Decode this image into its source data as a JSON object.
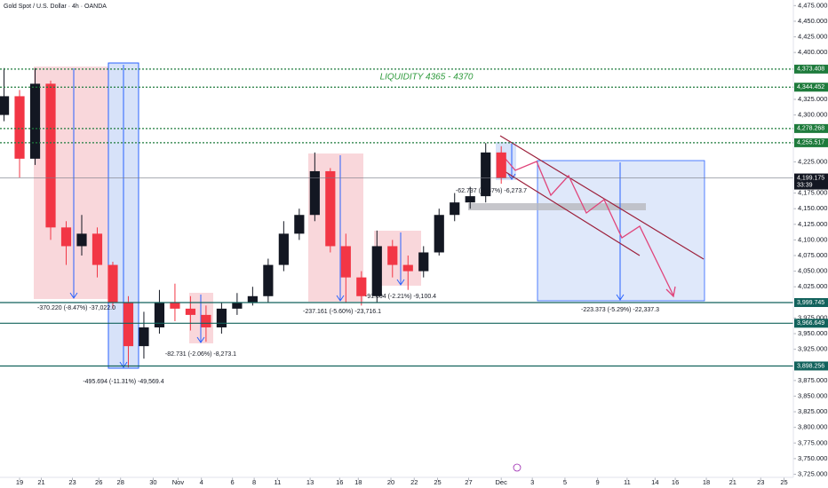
{
  "chart_data": {
    "type": "candlestick",
    "title": "Gold Spot / U.S. Dollar · 4h · OANDA",
    "x": [
      -1,
      0,
      1,
      2,
      3,
      4,
      5,
      6,
      7,
      8,
      9,
      10,
      11,
      12,
      13,
      14,
      15,
      16,
      17,
      18,
      19,
      20,
      21,
      22,
      23,
      24,
      25,
      26,
      27,
      28,
      29,
      30,
      31
    ],
    "open": [
      4300,
      4330,
      4230,
      4350,
      4120,
      4090,
      4110,
      4060,
      4000,
      3930,
      3960,
      4000,
      3990,
      3980,
      3960,
      3990,
      4000,
      4010,
      4060,
      4110,
      4140,
      4210,
      4090,
      4040,
      4010,
      4090,
      4060,
      4050,
      4080,
      4140,
      4160,
      4170,
      4240
    ],
    "high": [
      4375,
      4340,
      4375,
      4355,
      4130,
      4140,
      4120,
      4065,
      4010,
      3985,
      4020,
      4030,
      4010,
      3995,
      4000,
      4015,
      4025,
      4070,
      4130,
      4150,
      4240,
      4215,
      4110,
      4050,
      4115,
      4100,
      4075,
      4090,
      4150,
      4175,
      4185,
      4255,
      4250
    ],
    "low": [
      4290,
      4200,
      4220,
      4100,
      4060,
      4075,
      4040,
      3990,
      3896,
      3910,
      3950,
      3970,
      3955,
      3937,
      3950,
      3980,
      3995,
      4000,
      4050,
      4100,
      4130,
      4080,
      4000,
      3995,
      4000,
      4040,
      4020,
      4040,
      4075,
      4130,
      4150,
      4160,
      4190
    ],
    "close": [
      4330,
      4230,
      4350,
      4120,
      4090,
      4110,
      4060,
      4000,
      3930,
      3960,
      4000,
      3990,
      3980,
      3960,
      3990,
      4000,
      4010,
      4060,
      4110,
      4140,
      4210,
      4090,
      4040,
      4010,
      4090,
      4060,
      4050,
      4080,
      4140,
      4160,
      4170,
      4240,
      4199
    ],
    "up_color": "#131722",
    "down_color": "#f23645",
    "xlim": [
      -1.26,
      49.8
    ],
    "xticks": [
      {
        "value": 0,
        "label": "19"
      },
      {
        "value": 1.4,
        "label": "21"
      },
      {
        "value": 3.4,
        "label": "23"
      },
      {
        "value": 5.1,
        "label": "26"
      },
      {
        "value": 6.5,
        "label": "28"
      },
      {
        "value": 8.6,
        "label": "30"
      },
      {
        "value": 10.2,
        "label": "Nov"
      },
      {
        "value": 11.7,
        "label": "4"
      },
      {
        "value": 13.7,
        "label": "6"
      },
      {
        "value": 15.1,
        "label": "8"
      },
      {
        "value": 16.6,
        "label": "11"
      },
      {
        "value": 18.7,
        "label": "13"
      },
      {
        "value": 20.6,
        "label": "16"
      },
      {
        "value": 21.8,
        "label": "18"
      },
      {
        "value": 23.9,
        "label": "20"
      },
      {
        "value": 25.4,
        "label": "22"
      },
      {
        "value": 26.9,
        "label": "25"
      },
      {
        "value": 28.9,
        "label": "27"
      },
      {
        "value": 31,
        "label": "Dec"
      },
      {
        "value": 33,
        "label": "3"
      },
      {
        "value": 35.1,
        "label": "5"
      },
      {
        "value": 37.2,
        "label": "9"
      },
      {
        "value": 39.1,
        "label": "11"
      },
      {
        "value": 40.9,
        "label": "14"
      },
      {
        "value": 42.2,
        "label": "16"
      },
      {
        "value": 44.2,
        "label": "18"
      },
      {
        "value": 45.9,
        "label": "21"
      },
      {
        "value": 47.7,
        "label": "23"
      },
      {
        "value": 49.2,
        "label": "25"
      }
    ],
    "ylim": [
      3720,
      4484
    ],
    "yticks": [
      {
        "value": 4475,
        "label": "4,475.000"
      },
      {
        "value": 4450,
        "label": "4,450.000"
      },
      {
        "value": 4425,
        "label": "4,425.000"
      },
      {
        "value": 4400,
        "label": "4,400.000"
      },
      {
        "value": 4325,
        "label": "4,325.000"
      },
      {
        "value": 4300,
        "label": "4,300.000"
      },
      {
        "value": 4225,
        "label": "4,225.000"
      },
      {
        "value": 4175,
        "label": "4,175.000"
      },
      {
        "value": 4150,
        "label": "4,150.000"
      },
      {
        "value": 4125,
        "label": "4,125.000"
      },
      {
        "value": 4100,
        "label": "4,100.000"
      },
      {
        "value": 4075,
        "label": "4,075.000"
      },
      {
        "value": 4050,
        "label": "4,050.000"
      },
      {
        "value": 4025,
        "label": "4,025.000"
      },
      {
        "value": 3975,
        "label": "3,975.000"
      },
      {
        "value": 3950,
        "label": "3,950.000"
      },
      {
        "value": 3925,
        "label": "3,925.000"
      },
      {
        "value": 3875,
        "label": "3,875.000"
      },
      {
        "value": 3850,
        "label": "3,850.000"
      },
      {
        "value": 3825,
        "label": "3,825.000"
      },
      {
        "value": 3800,
        "label": "3,800.000"
      },
      {
        "value": 3775,
        "label": "3,775.000"
      },
      {
        "value": 3750,
        "label": "3,750.000"
      },
      {
        "value": 3725,
        "label": "3,725.000"
      }
    ],
    "levels": [
      {
        "value": 4373.408,
        "label": "4,373.408",
        "style": "dashed",
        "color": "#1e7b3c"
      },
      {
        "value": 4344.452,
        "label": "4,344.452",
        "style": "dashed",
        "color": "#1e7b3c"
      },
      {
        "value": 4278.268,
        "label": "4,278.268",
        "style": "dashed",
        "color": "#1e7b3c"
      },
      {
        "value": 4255.517,
        "label": "4,255.517",
        "style": "dashed",
        "color": "#1e7b3c"
      },
      {
        "value": 3999.745,
        "label": "3,999.745",
        "style": "solid",
        "color": "#12625c"
      },
      {
        "value": 3966.649,
        "label": "3,966.649",
        "style": "solid",
        "color": "#12625c"
      },
      {
        "value": 3898.256,
        "label": "3,898.256",
        "style": "solid",
        "color": "#12625c"
      }
    ],
    "last_price": {
      "value": 4199.175,
      "label": "4,199.175",
      "countdown": "33:39"
    },
    "annotations": [
      "LIQUIDITY 4365 - 4370",
      "-370.220 (-8.47%) -37,022.0",
      "-495.694 (-11.31%) -49,569.4",
      "-82.731 (-2.06%) -8,273.1",
      "-237.161 (-5.60%) -23,716.1",
      "-91.004 (-2.21%) -9,100.4",
      "-62.737 (-1.47%) -6,273.7",
      "-223.373 (-5.29%) -22,337.3"
    ]
  }
}
